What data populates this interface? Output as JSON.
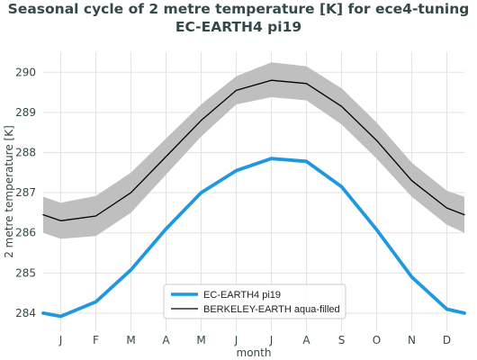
{
  "chart_data": {
    "type": "line",
    "title": "Seasonal cycle of 2 metre temperature [K] for ece4-tuning",
    "subtitle": "EC-EARTH4 pi19",
    "xlabel": "month",
    "ylabel": "2 metre temperature [K]",
    "categories": [
      "J",
      "F",
      "M",
      "A",
      "M",
      "J",
      "J",
      "A",
      "S",
      "O",
      "N",
      "D"
    ],
    "ylim": [
      283.55,
      290.5
    ],
    "yticks": [
      284,
      285,
      286,
      287,
      288,
      289,
      290
    ],
    "grid": true,
    "legend_position": "bottom-center",
    "series": [
      {
        "name": "EC-EARTH4 pi19",
        "color": "#1f98e0",
        "x": [
          0,
          1,
          2,
          3,
          4,
          5,
          6,
          7,
          8,
          9,
          10,
          11,
          12
        ],
        "values": [
          283.92,
          284.28,
          285.08,
          286.1,
          287.0,
          287.55,
          287.85,
          287.78,
          287.15,
          286.08,
          284.9,
          284.1,
          283.92
        ],
        "edge_left": 284.0,
        "edge_right": 284.0
      },
      {
        "name": "BERKELEY-EARTH aqua-filled",
        "color": "#000000",
        "x": [
          0,
          1,
          2,
          3,
          4,
          5,
          6,
          7,
          8,
          9,
          10,
          11,
          12
        ],
        "values": [
          286.3,
          286.42,
          287.0,
          287.9,
          288.8,
          289.55,
          289.8,
          289.72,
          289.15,
          288.3,
          287.3,
          286.62,
          286.3
        ],
        "edge_left": 286.45,
        "edge_right": 286.45,
        "band_upper": [
          286.75,
          286.92,
          287.5,
          288.35,
          289.2,
          289.9,
          290.25,
          290.15,
          289.6,
          288.75,
          287.75,
          287.05,
          286.75
        ],
        "band_lower": [
          285.85,
          285.92,
          286.5,
          287.45,
          288.4,
          289.2,
          289.38,
          289.3,
          288.7,
          287.85,
          286.9,
          286.2,
          285.85
        ],
        "band_edge_upper": 286.9,
        "band_edge_lower": 286.0,
        "band_color": "#bfbfbf"
      }
    ]
  }
}
